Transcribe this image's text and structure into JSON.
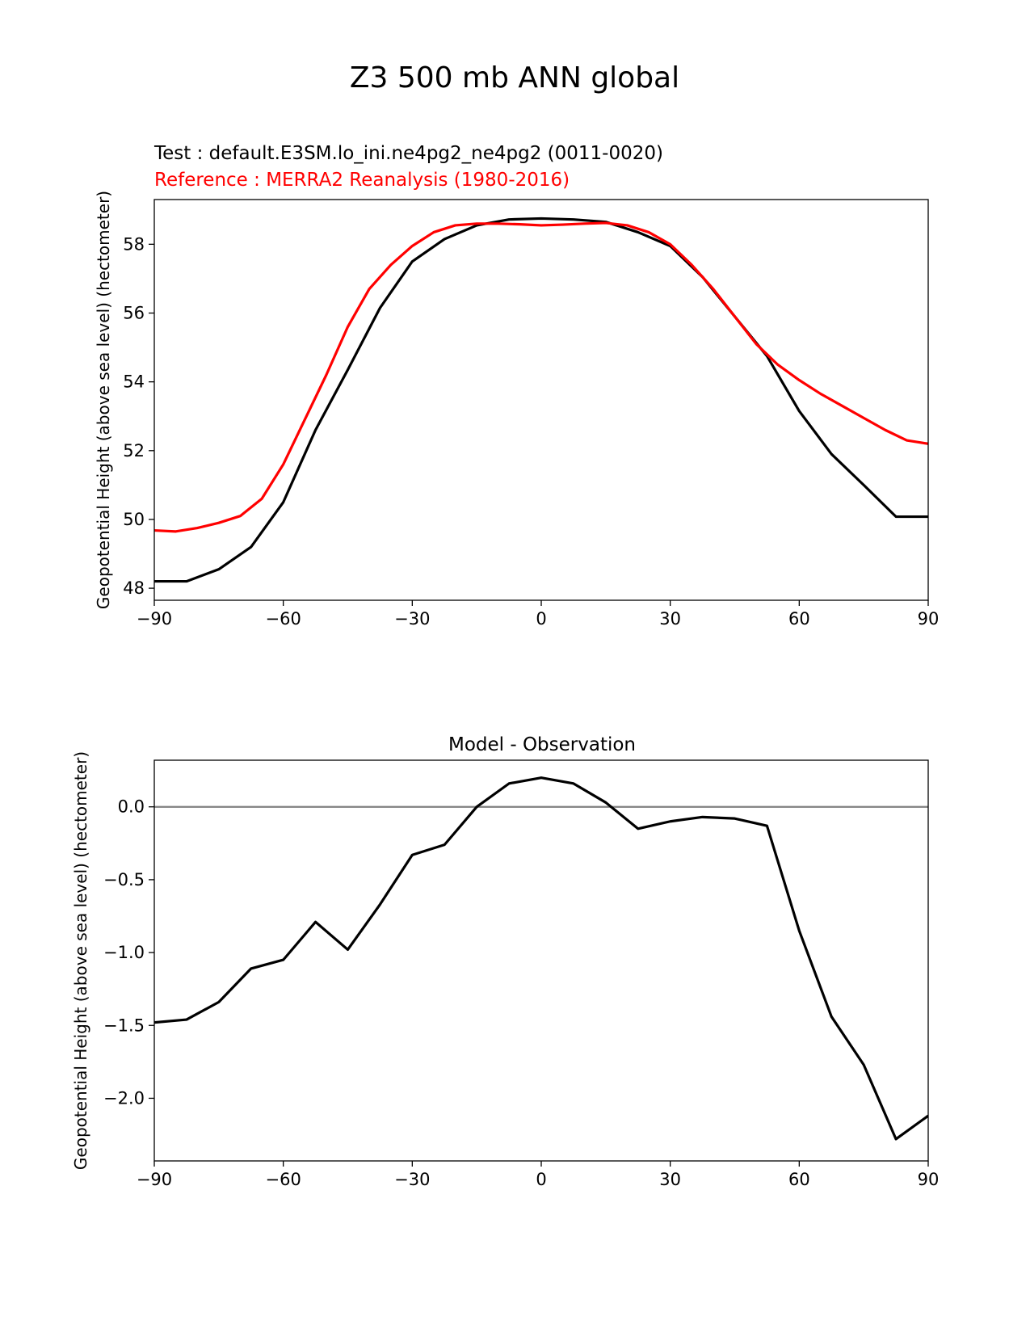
{
  "figure": {
    "suptitle": "Z3 500 mb ANN global"
  },
  "chart_data": [
    {
      "type": "line",
      "title_left_line1": "Test : default.E3SM.lo_ini.ne4pg2_ne4pg2 (0011-0020)",
      "title_left_line2": "Reference : MERRA2 Reanalysis (1980-2016)",
      "xlabel": "",
      "ylabel": "Geopotential Height (above sea level) (hectometer)",
      "xlim": [
        -90,
        90
      ],
      "ylim": [
        47.65,
        59.3
      ],
      "xticks": [
        -90,
        -60,
        -30,
        0,
        30,
        60,
        90
      ],
      "xtick_labels": [
        "−90",
        "−60",
        "−30",
        "0",
        "30",
        "60",
        "90"
      ],
      "yticks": [
        48,
        50,
        52,
        54,
        56,
        58
      ],
      "ytick_labels": [
        "48",
        "50",
        "52",
        "54",
        "56",
        "58"
      ],
      "grid": false,
      "series": [
        {
          "name": "Test",
          "color": "#000000",
          "x": [
            -90,
            -82.5,
            -75,
            -67.5,
            -60,
            -52.5,
            -45,
            -37.5,
            -30,
            -22.5,
            -15,
            -7.5,
            0,
            7.5,
            15,
            22.5,
            30,
            37.5,
            45,
            52.5,
            60,
            67.5,
            75,
            82.5,
            90
          ],
          "y": [
            48.2,
            48.2,
            48.55,
            49.2,
            50.5,
            52.6,
            54.35,
            56.15,
            57.5,
            58.15,
            58.55,
            58.72,
            58.75,
            58.72,
            58.65,
            58.35,
            57.95,
            57.05,
            55.9,
            54.75,
            53.15,
            51.9,
            51.0,
            50.08,
            50.08
          ]
        },
        {
          "name": "Reference",
          "color": "#ff0000",
          "x": [
            -90,
            -85,
            -80,
            -75,
            -70,
            -65,
            -60,
            -55,
            -50,
            -45,
            -40,
            -35,
            -30,
            -25,
            -20,
            -15,
            -10,
            -5,
            0,
            5,
            10,
            15,
            20,
            25,
            30,
            35,
            40,
            45,
            50,
            55,
            60,
            65,
            70,
            75,
            80,
            85,
            90
          ],
          "y": [
            49.68,
            49.65,
            49.75,
            49.9,
            50.1,
            50.6,
            51.6,
            52.9,
            54.2,
            55.6,
            56.7,
            57.4,
            57.95,
            58.35,
            58.55,
            58.6,
            58.6,
            58.58,
            58.55,
            58.57,
            58.6,
            58.62,
            58.55,
            58.35,
            58.0,
            57.4,
            56.7,
            55.9,
            55.1,
            54.5,
            54.05,
            53.65,
            53.3,
            52.95,
            52.6,
            52.3,
            52.2
          ]
        }
      ]
    },
    {
      "type": "line",
      "title": "Model - Observation",
      "xlabel": "",
      "ylabel": "Geopotential Height (above sea level) (hectometer)",
      "xlim": [
        -90,
        90
      ],
      "ylim": [
        -2.43,
        0.32
      ],
      "xticks": [
        -90,
        -60,
        -30,
        0,
        30,
        60,
        90
      ],
      "xtick_labels": [
        "−90",
        "−60",
        "−30",
        "0",
        "30",
        "60",
        "90"
      ],
      "yticks": [
        0.0,
        -0.5,
        -1.0,
        -1.5,
        -2.0
      ],
      "ytick_labels": [
        "0.0",
        "−0.5",
        "−1.0",
        "−1.5",
        "−2.0"
      ],
      "grid": false,
      "reference_line": {
        "y": 0,
        "color": "#808080"
      },
      "series": [
        {
          "name": "Model - Observation",
          "color": "#000000",
          "x": [
            -90,
            -82.5,
            -75,
            -67.5,
            -60,
            -52.5,
            -45,
            -37.5,
            -30,
            -22.5,
            -15,
            -7.5,
            0,
            7.5,
            15,
            22.5,
            30,
            37.5,
            45,
            52.5,
            60,
            67.5,
            75,
            82.5,
            90
          ],
          "y": [
            -1.48,
            -1.46,
            -1.34,
            -1.11,
            -1.05,
            -0.79,
            -0.98,
            -0.67,
            -0.33,
            -0.26,
            0.0,
            0.16,
            0.2,
            0.16,
            0.03,
            -0.15,
            -0.1,
            -0.07,
            -0.08,
            -0.13,
            -0.85,
            -1.44,
            -1.77,
            -2.28,
            -2.12
          ]
        }
      ]
    }
  ]
}
